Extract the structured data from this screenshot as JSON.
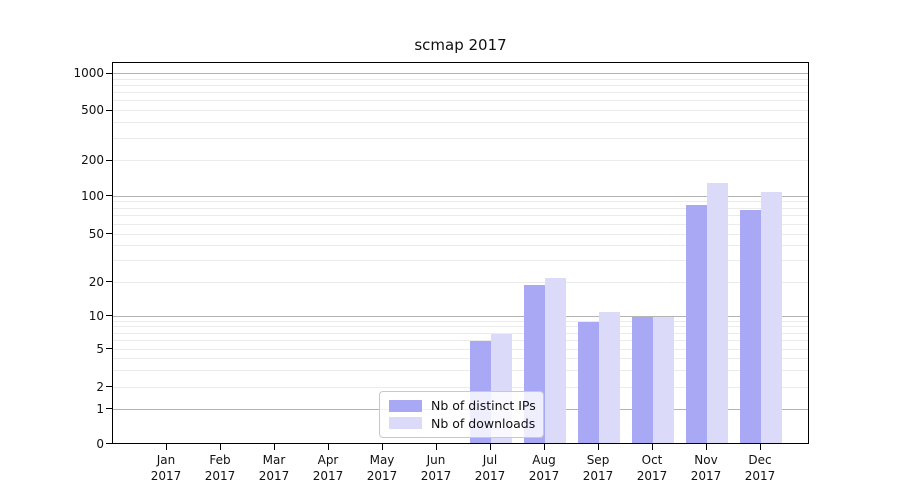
{
  "chart_data": {
    "type": "bar",
    "title": "scmap 2017",
    "categories": [
      "Jan",
      "Feb",
      "Mar",
      "Apr",
      "May",
      "Jun",
      "Jul",
      "Aug",
      "Sep",
      "Oct",
      "Nov",
      "Dec"
    ],
    "category_year": "2017",
    "series": [
      {
        "name": "Nb of distinct IPs",
        "color": "#a8a8f5",
        "values": [
          0,
          0,
          0,
          0,
          0,
          0,
          6,
          19,
          9,
          10,
          86,
          79
        ]
      },
      {
        "name": "Nb of downloads",
        "color": "#dbdbf9",
        "values": [
          0,
          0,
          0,
          0,
          0,
          0,
          7,
          22,
          11,
          10,
          130,
          110
        ]
      }
    ],
    "y_ticks": [
      0,
      1,
      2,
      5,
      10,
      20,
      50,
      100,
      200,
      500,
      1000
    ],
    "y_major_gridlines": [
      1,
      10,
      100,
      1000
    ],
    "y_minor_gridlines": [
      3,
      4,
      6,
      7,
      8,
      9,
      30,
      40,
      60,
      70,
      80,
      90,
      300,
      400,
      600,
      700,
      800,
      900
    ],
    "ylim": [
      0,
      1200
    ],
    "xlabel": "",
    "ylabel": "",
    "grid": true,
    "legend_position": "lower center",
    "colors": {
      "major_grid": "#b3b3b3",
      "minor_grid": "#ebebeb",
      "axis": "#000000",
      "text": "#111111"
    }
  }
}
